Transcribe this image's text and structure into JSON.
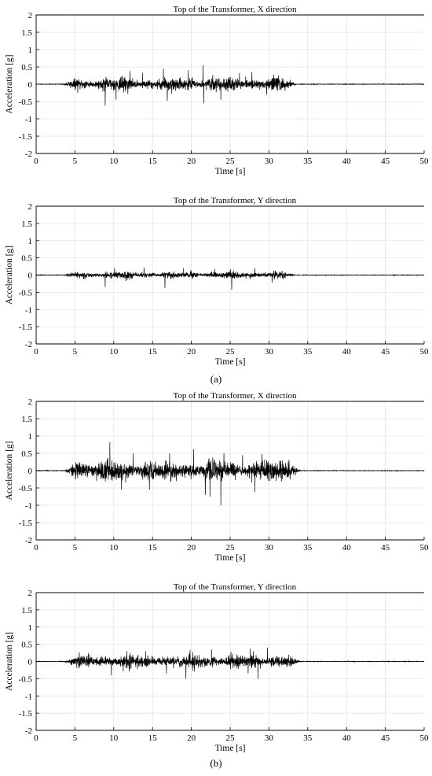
{
  "captions": [
    "(a)",
    "(b)"
  ],
  "chart_data": [
    {
      "type": "line",
      "group": "(a)",
      "title": "Top of the Transformer, X direction",
      "xlabel": "Time [s]",
      "ylabel": "Acceleration [g]",
      "xlim": [
        0,
        50
      ],
      "ylim": [
        -2,
        2
      ],
      "xticks": [
        0,
        5,
        10,
        15,
        20,
        25,
        30,
        35,
        40,
        45,
        50
      ],
      "yticks": [
        2,
        1.5,
        1,
        0.5,
        0,
        -0.5,
        -1,
        -1.5,
        -2
      ],
      "grid": true,
      "signal": {
        "start": 3.8,
        "end": 33.0,
        "rms": 0.09,
        "seed": 11
      },
      "peaks": [
        {
          "t": 8.9,
          "v": -0.62
        },
        {
          "t": 10.3,
          "v": -0.45
        },
        {
          "t": 12.1,
          "v": 0.38
        },
        {
          "t": 13.7,
          "v": 0.33
        },
        {
          "t": 16.4,
          "v": 0.45
        },
        {
          "t": 16.9,
          "v": -0.48
        },
        {
          "t": 19.6,
          "v": 0.4
        },
        {
          "t": 21.5,
          "v": 0.55
        },
        {
          "t": 21.6,
          "v": -0.55
        },
        {
          "t": 23.8,
          "v": -0.45
        },
        {
          "t": 26.2,
          "v": 0.32
        },
        {
          "t": 27.8,
          "v": 0.35
        },
        {
          "t": 29.7,
          "v": -0.3
        },
        {
          "t": 30.6,
          "v": 0.28
        }
      ]
    },
    {
      "type": "line",
      "group": "(a)",
      "title": "Top of the Transformer, Y direction",
      "xlabel": "Time [s]",
      "ylabel": "Acceleration [g]",
      "xlim": [
        0,
        50
      ],
      "ylim": [
        -2,
        2
      ],
      "xticks": [
        0,
        5,
        10,
        15,
        20,
        25,
        30,
        35,
        40,
        45,
        50
      ],
      "yticks": [
        2,
        1.5,
        1,
        0.5,
        0,
        -0.5,
        -1,
        -1.5,
        -2
      ],
      "grid": true,
      "signal": {
        "start": 3.8,
        "end": 33.0,
        "rms": 0.05,
        "seed": 23
      },
      "peaks": [
        {
          "t": 8.9,
          "v": -0.35
        },
        {
          "t": 10.1,
          "v": 0.2
        },
        {
          "t": 13.9,
          "v": 0.22
        },
        {
          "t": 16.6,
          "v": -0.38
        },
        {
          "t": 19.0,
          "v": 0.2
        },
        {
          "t": 23.0,
          "v": 0.18
        },
        {
          "t": 25.2,
          "v": -0.43
        },
        {
          "t": 28.2,
          "v": 0.2
        },
        {
          "t": 30.4,
          "v": -0.22
        }
      ]
    },
    {
      "type": "line",
      "group": "(b)",
      "title": "Top of the Transformer, X direction",
      "xlabel": "Time [s]",
      "ylabel": "Acceleration [g]",
      "xlim": [
        0,
        50
      ],
      "ylim": [
        -2,
        2
      ],
      "xticks": [
        0,
        5,
        10,
        15,
        20,
        25,
        30,
        35,
        40,
        45,
        50
      ],
      "yticks": [
        2,
        1.5,
        1,
        0.5,
        0,
        -0.5,
        -1,
        -1.5,
        -2
      ],
      "grid": true,
      "signal": {
        "start": 4.0,
        "end": 33.5,
        "rms": 0.14,
        "seed": 37
      },
      "peaks": [
        {
          "t": 9.5,
          "v": 0.82
        },
        {
          "t": 11.0,
          "v": -0.55
        },
        {
          "t": 12.5,
          "v": 0.5
        },
        {
          "t": 14.6,
          "v": -0.55
        },
        {
          "t": 17.2,
          "v": 0.5
        },
        {
          "t": 20.3,
          "v": 0.62
        },
        {
          "t": 21.8,
          "v": -0.7
        },
        {
          "t": 22.4,
          "v": -0.75
        },
        {
          "t": 23.8,
          "v": -1.0
        },
        {
          "t": 24.2,
          "v": 0.5
        },
        {
          "t": 26.6,
          "v": 0.45
        },
        {
          "t": 28.2,
          "v": -0.62
        },
        {
          "t": 29.1,
          "v": 0.48
        }
      ]
    },
    {
      "type": "line",
      "group": "(b)",
      "title": "Top of the Transformer, Y direction",
      "xlabel": "Time [s]",
      "ylabel": "Acceleration [g]",
      "xlim": [
        0,
        50
      ],
      "ylim": [
        -2,
        2
      ],
      "xticks": [
        0,
        5,
        10,
        15,
        20,
        25,
        30,
        35,
        40,
        45,
        50
      ],
      "yticks": [
        2,
        1.5,
        1,
        0.5,
        0,
        -0.5,
        -1,
        -1.5,
        -2
      ],
      "grid": true,
      "signal": {
        "start": 4.0,
        "end": 33.5,
        "rms": 0.1,
        "seed": 53
      },
      "peaks": [
        {
          "t": 9.7,
          "v": -0.4
        },
        {
          "t": 14.1,
          "v": 0.3
        },
        {
          "t": 16.8,
          "v": -0.35
        },
        {
          "t": 19.3,
          "v": -0.5
        },
        {
          "t": 22.6,
          "v": 0.35
        },
        {
          "t": 25.1,
          "v": 0.28
        },
        {
          "t": 27.6,
          "v": 0.38
        },
        {
          "t": 28.6,
          "v": -0.5
        },
        {
          "t": 29.8,
          "v": 0.4
        }
      ]
    }
  ]
}
